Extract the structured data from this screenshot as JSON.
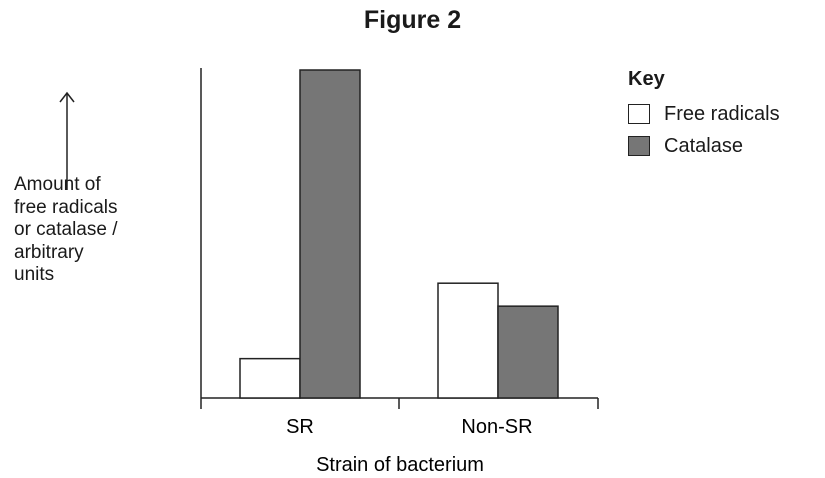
{
  "figure_title": "Figure 2",
  "key_title": "Key",
  "chart_data": {
    "type": "bar",
    "title": "",
    "xlabel": "Strain of bacterium",
    "ylabel_lines": [
      "Amount of",
      "free radicals",
      "or catalase /",
      "arbitrary",
      "units"
    ],
    "categories": [
      "SR",
      "Non-SR"
    ],
    "series": [
      {
        "name": "Free radicals",
        "values": [
          1.2,
          3.5
        ],
        "color": "#ffffff"
      },
      {
        "name": "Catalase",
        "values": [
          10.0,
          2.8
        ],
        "color": "#767676"
      }
    ],
    "ylim": [
      0,
      10
    ],
    "grid": false,
    "legend_position": "top-right"
  }
}
